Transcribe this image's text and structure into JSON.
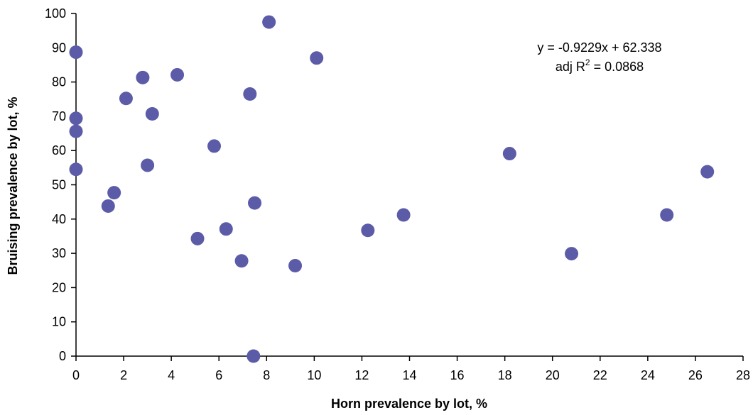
{
  "chart_data": {
    "type": "scatter",
    "title": "",
    "xlabel": "Horn prevalence by lot, %",
    "ylabel": "Bruising prevalence by lot, %",
    "xlim": [
      0,
      28
    ],
    "ylim": [
      0,
      100
    ],
    "x_ticks": [
      "0",
      "2",
      "4",
      "6",
      "8",
      "10",
      "12",
      "14",
      "16",
      "18",
      "20",
      "22",
      "24",
      "26",
      "28"
    ],
    "y_ticks": [
      "0",
      "10",
      "20",
      "30",
      "40",
      "50",
      "60",
      "70",
      "80",
      "90",
      "100"
    ],
    "grid": false,
    "marker_color": "#5b5ba8",
    "annotation": {
      "equation": "y = -0.9229x + 62.338",
      "r2_prefix": "adj R",
      "r2_sup": "2",
      "r2_suffix": " = 0.0868"
    },
    "points": [
      {
        "x": 0.0,
        "y": 88.7
      },
      {
        "x": 0.0,
        "y": 69.4
      },
      {
        "x": 0.0,
        "y": 65.6
      },
      {
        "x": 0.0,
        "y": 54.5
      },
      {
        "x": 1.35,
        "y": 43.8
      },
      {
        "x": 1.6,
        "y": 47.7
      },
      {
        "x": 2.1,
        "y": 75.2
      },
      {
        "x": 2.8,
        "y": 81.3
      },
      {
        "x": 3.0,
        "y": 55.7
      },
      {
        "x": 3.2,
        "y": 70.7
      },
      {
        "x": 4.25,
        "y": 82.1
      },
      {
        "x": 5.1,
        "y": 34.3
      },
      {
        "x": 5.8,
        "y": 61.3
      },
      {
        "x": 6.3,
        "y": 37.1
      },
      {
        "x": 6.95,
        "y": 27.8
      },
      {
        "x": 7.3,
        "y": 76.5
      },
      {
        "x": 7.45,
        "y": 0.0
      },
      {
        "x": 7.5,
        "y": 44.7
      },
      {
        "x": 8.1,
        "y": 97.5
      },
      {
        "x": 9.2,
        "y": 26.4
      },
      {
        "x": 10.1,
        "y": 87.0
      },
      {
        "x": 12.25,
        "y": 36.7
      },
      {
        "x": 13.75,
        "y": 41.2
      },
      {
        "x": 18.2,
        "y": 59.1
      },
      {
        "x": 20.8,
        "y": 29.9
      },
      {
        "x": 24.8,
        "y": 41.2
      },
      {
        "x": 26.5,
        "y": 53.8
      }
    ]
  }
}
